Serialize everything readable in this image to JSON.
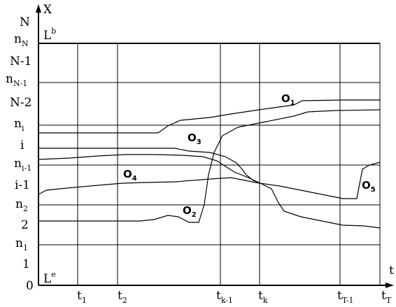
{
  "axes": {
    "y_label_outer": "N",
    "y_label_arrow": "X",
    "x_label_arrow": "t",
    "x_label_end": "t",
    "x_label_end_sub": "T",
    "origin": "0"
  },
  "regions": {
    "top": {
      "main": "L",
      "sup": "b"
    },
    "bottom": {
      "main": "L",
      "sup": "e"
    }
  },
  "y_ticks": [
    {
      "main": "n",
      "sub": "N"
    },
    {
      "main": "N-1",
      "sub": ""
    },
    {
      "main": "n",
      "sub": "N-1"
    },
    {
      "main": "N-2",
      "sub": ""
    },
    {
      "main": "n",
      "sub": "i"
    },
    {
      "main": "i",
      "sub": ""
    },
    {
      "main": "n",
      "sub": "i-1"
    },
    {
      "main": "i-1",
      "sub": ""
    },
    {
      "main": "n",
      "sub": "2"
    },
    {
      "main": "2",
      "sub": ""
    },
    {
      "main": "n",
      "sub": "1"
    },
    {
      "main": "1",
      "sub": ""
    }
  ],
  "x_ticks": [
    {
      "main": "t",
      "sub": "1"
    },
    {
      "main": "t",
      "sub": "2"
    },
    {
      "main": "t",
      "sub": "k-1"
    },
    {
      "main": "t",
      "sub": "k"
    },
    {
      "main": "t",
      "sub": "T-1"
    }
  ],
  "curves": [
    {
      "main": "O",
      "sub": "1"
    },
    {
      "main": "O",
      "sub": "2"
    },
    {
      "main": "O",
      "sub": "3"
    },
    {
      "main": "O",
      "sub": "4"
    },
    {
      "main": "O",
      "sub": "5"
    }
  ]
}
